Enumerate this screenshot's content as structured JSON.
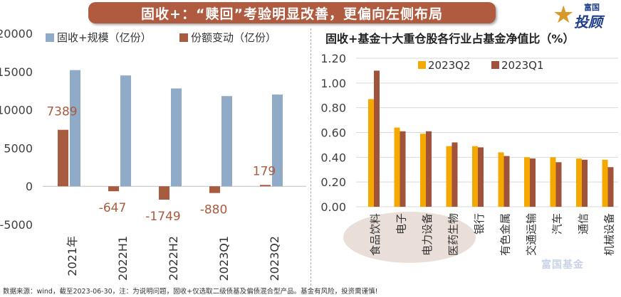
{
  "header": {
    "title": "固收+：“赎回”考验明显改善，更偏向左侧布局"
  },
  "logo": {
    "small_text": "富国",
    "big_text": "投顾",
    "star": "★"
  },
  "footnote": "数据来源：wind，截至2023-06-30，注：为说明问题，固收+仅选取二级债基及偏债混合型产品。基金有风险，投资需谨慎!",
  "watermark": "富国基金",
  "colors": {
    "scale": "#8fabc7",
    "flow": "#a75c40",
    "q2": "#f5a800",
    "q1": "#a0533a",
    "title_bg": "#b05a40",
    "grid": "#d9d9d9"
  },
  "chart_data": [
    {
      "type": "bar",
      "title": "",
      "legend": [
        "固收+规模（亿份）",
        "份额变动（亿份）"
      ],
      "categories": [
        "2021年",
        "2022H1",
        "2022H2",
        "2023Q1",
        "2023Q2"
      ],
      "series": [
        {
          "name": "固收+规模（亿份）",
          "values": [
            15200,
            14500,
            12800,
            11800,
            12000
          ]
        },
        {
          "name": "份额变动（亿份）",
          "values": [
            7389,
            -647,
            -1749,
            -880,
            179
          ],
          "labels": [
            "7389",
            "-647",
            "-1749",
            "-880",
            "179"
          ]
        }
      ],
      "ylim": [
        -5000,
        20000
      ],
      "yticks": [
        20000,
        15000,
        10000,
        5000,
        0,
        -5000
      ],
      "ytick_labels": [
        "20000",
        "15000",
        "10000",
        "5000",
        "0",
        "-5000"
      ],
      "xlabel": "",
      "ylabel": "",
      "grid": false,
      "legend_position": "top"
    },
    {
      "type": "bar",
      "title": "固收+基金十大重仓股各行业占基金净值比（%）",
      "legend": [
        "2023Q2",
        "2023Q1"
      ],
      "categories": [
        "食品饮料",
        "电子",
        "电力设备",
        "医药生物",
        "银行",
        "有色金属",
        "交通运输",
        "汽车",
        "通信",
        "机械设备"
      ],
      "series": [
        {
          "name": "2023Q2",
          "values": [
            0.87,
            0.64,
            0.59,
            0.49,
            0.49,
            0.44,
            0.4,
            0.4,
            0.39,
            0.38
          ]
        },
        {
          "name": "2023Q1",
          "values": [
            1.1,
            0.61,
            0.61,
            0.52,
            0.48,
            0.41,
            0.39,
            0.36,
            0.38,
            0.32
          ]
        }
      ],
      "ylim": [
        0,
        1.2
      ],
      "yticks": [
        0,
        0.2,
        0.4,
        0.6,
        0.8,
        1.0,
        1.2
      ],
      "ytick_labels": [
        "0.00",
        "0.20",
        "0.40",
        "0.60",
        "0.80",
        "1.00",
        "1.20"
      ],
      "xlabel": "",
      "ylabel": "",
      "grid": true,
      "legend_position": "top-right"
    }
  ]
}
